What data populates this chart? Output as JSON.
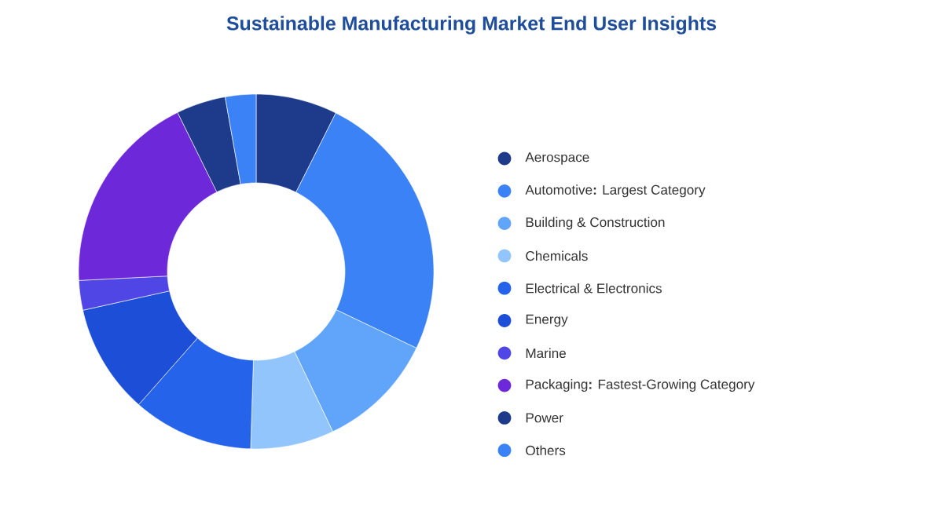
{
  "chart_data": {
    "type": "donut",
    "title": "Sustainable Manufacturing Market End User Insights",
    "categories": [
      "Aerospace",
      "Automotive**:** Largest Category",
      "Building & Construction",
      "Chemicals",
      "Electrical & Electronics",
      "Energy",
      "Marine",
      "Packaging**:** Fastest-Growing Category",
      "Power",
      "Others"
    ],
    "values": [
      7.4,
      24.7,
      10.8,
      7.6,
      11,
      10,
      2.7,
      18.5,
      4.5,
      2.8
    ],
    "colors": [
      "#1e3a8a",
      "#3b82f6",
      "#60a5fa",
      "#93c5fd",
      "#2563eb",
      "#1d4ed8",
      "#4f46e5",
      "#6d28d9",
      "#1e3a8a",
      "#3b82f6"
    ],
    "legend": "right"
  }
}
